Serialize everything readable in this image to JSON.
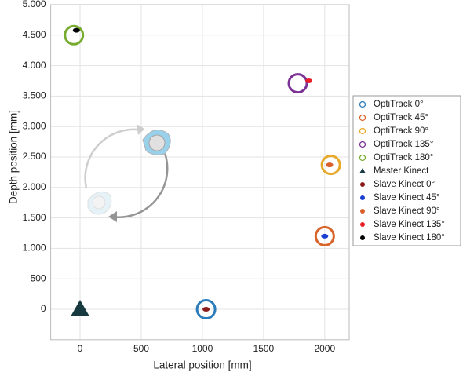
{
  "chart_data": {
    "type": "scatter",
    "x_label": "Lateral position [mm]",
    "y_label": "Depth position [mm]",
    "xlim": [
      -240,
      2200
    ],
    "ylim": [
      -500,
      5000
    ],
    "xticks": [
      0,
      500,
      1000,
      1500,
      2000
    ],
    "yticks": [
      0,
      500,
      {
        "value": 1000,
        "label": "1.000"
      },
      {
        "value": 1500,
        "label": "1.500"
      },
      {
        "value": 2000,
        "label": "2.000"
      },
      {
        "value": 2500,
        "label": "2.500"
      },
      {
        "value": 3000,
        "label": "3.000"
      },
      {
        "value": 3500,
        "label": "3.500"
      },
      {
        "value": 4000,
        "label": "4.000"
      },
      {
        "value": 4500,
        "label": "4.500"
      },
      {
        "value": 5000,
        "label": "5.000"
      }
    ],
    "grid": true,
    "legend": "right",
    "series": [
      {
        "name": "OptiTrack 0°",
        "color": "#2b7bba",
        "marker": "ring",
        "x": [
          1030
        ],
        "y": [
          0
        ]
      },
      {
        "name": "OptiTrack 45°",
        "color": "#d9642a",
        "marker": "ring",
        "x": [
          2000
        ],
        "y": [
          1200
        ]
      },
      {
        "name": "OptiTrack 90°",
        "color": "#e8a92a",
        "marker": "ring",
        "x": [
          2050
        ],
        "y": [
          2370
        ]
      },
      {
        "name": "OptiTrack 135°",
        "color": "#7b3294",
        "marker": "ring",
        "x": [
          1780
        ],
        "y": [
          3710
        ]
      },
      {
        "name": "OptiTrack 180°",
        "color": "#77ac30",
        "marker": "ring",
        "x": [
          -50
        ],
        "y": [
          4500
        ]
      },
      {
        "name": "Master Kinect",
        "color": "#163a40",
        "marker": "triangle",
        "x": [
          0
        ],
        "y": [
          0
        ]
      },
      {
        "name": "Slave Kinect 0°",
        "color": "#8b1a1a",
        "marker": "dot",
        "x": [
          1030
        ],
        "y": [
          0
        ]
      },
      {
        "name": "Slave Kinect 45°",
        "color": "#1a3fd1",
        "marker": "dot",
        "x": [
          2000
        ],
        "y": [
          1200
        ]
      },
      {
        "name": "Slave Kinect 90°",
        "color": "#d95f2a",
        "marker": "dot",
        "x": [
          2040
        ],
        "y": [
          2370
        ]
      },
      {
        "name": "Slave Kinect 135°",
        "color": "#e8202a",
        "marker": "dot",
        "x": [
          1870
        ],
        "y": [
          3750
        ]
      },
      {
        "name": "Slave Kinect 180°",
        "color": "#000000",
        "marker": "dot",
        "x": [
          -30
        ],
        "y": [
          4580
        ]
      }
    ]
  }
}
